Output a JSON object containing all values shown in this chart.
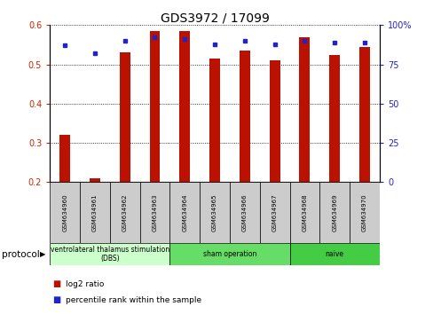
{
  "title": "GDS3972 / 17099",
  "samples": [
    "GSM634960",
    "GSM634961",
    "GSM634962",
    "GSM634963",
    "GSM634964",
    "GSM634965",
    "GSM634966",
    "GSM634967",
    "GSM634968",
    "GSM634969",
    "GSM634970"
  ],
  "log2_ratio": [
    0.32,
    0.21,
    0.53,
    0.585,
    0.585,
    0.515,
    0.535,
    0.51,
    0.57,
    0.525,
    0.545
  ],
  "percentile_rank": [
    87,
    82,
    90,
    92,
    91,
    88,
    90,
    88,
    90,
    89,
    89
  ],
  "bar_color": "#bb1100",
  "dot_color": "#2222cc",
  "ylim_left": [
    0.2,
    0.6
  ],
  "ylim_right": [
    0,
    100
  ],
  "yticks_left": [
    0.2,
    0.3,
    0.4,
    0.5,
    0.6
  ],
  "yticks_right": [
    0,
    25,
    50,
    75,
    100
  ],
  "ytick_labels_right": [
    "0",
    "25",
    "50",
    "75",
    "100%"
  ],
  "groups": [
    {
      "label": "ventrolateral thalamus stimulation\n(DBS)",
      "start": 0,
      "end": 3,
      "color": "#ccffcc"
    },
    {
      "label": "sham operation",
      "start": 4,
      "end": 7,
      "color": "#66dd66"
    },
    {
      "label": "naive",
      "start": 8,
      "end": 10,
      "color": "#44cc44"
    }
  ],
  "protocol_label": "protocol",
  "legend_bar_label": "log2 ratio",
  "legend_dot_label": "percentile rank within the sample",
  "bar_width": 0.35,
  "background_color": "#ffffff",
  "tick_color_left": "#cc2200",
  "tick_color_right": "#2222cc",
  "sample_box_color": "#cccccc"
}
